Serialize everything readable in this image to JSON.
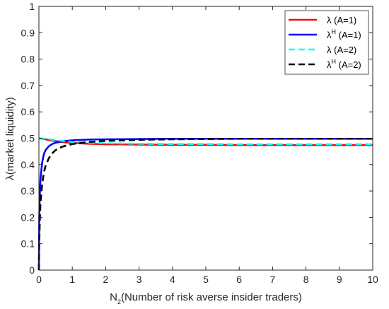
{
  "chart_data": {
    "type": "line",
    "xlabel": {
      "base": "N",
      "sub": "2",
      "rest": "(Number of risk averse insider traders)"
    },
    "ylabel": "λ(market liquidity)",
    "xlim": [
      0,
      10
    ],
    "ylim": [
      0,
      1
    ],
    "xticks": [
      "0",
      "1",
      "2",
      "3",
      "4",
      "5",
      "6",
      "7",
      "8",
      "9",
      "10"
    ],
    "yticks": [
      "0",
      "0.1",
      "0.2",
      "0.3",
      "0.4",
      "0.5",
      "0.6",
      "0.7",
      "0.8",
      "0.9",
      "1"
    ],
    "grid": false,
    "legend_position": "top-right",
    "series": [
      {
        "name": "λ (A=1)",
        "legend": {
          "sym": "λ",
          "sup": "",
          "rest": " (A=1)"
        },
        "color": "#ff0000",
        "dash": "solid",
        "x": [
          0,
          0.1,
          0.2,
          0.3,
          0.5,
          0.75,
          1,
          1.5,
          2,
          3,
          4,
          5,
          6,
          7,
          8,
          9,
          10
        ],
        "y": [
          0.5,
          0.498,
          0.496,
          0.493,
          0.489,
          0.485,
          0.482,
          0.479,
          0.477,
          0.476,
          0.475,
          0.475,
          0.474,
          0.474,
          0.474,
          0.474,
          0.474
        ]
      },
      {
        "name": "λH (A=1)",
        "legend": {
          "sym": "λ",
          "sup": "H",
          "rest": " (A=1)"
        },
        "color": "#0000ff",
        "dash": "solid",
        "x": [
          0,
          0.01,
          0.03,
          0.05,
          0.1,
          0.15,
          0.2,
          0.3,
          0.4,
          0.5,
          0.7,
          1,
          1.5,
          2,
          3,
          4,
          5,
          6,
          7,
          8,
          9,
          10
        ],
        "y": [
          0,
          0.2,
          0.3,
          0.35,
          0.41,
          0.44,
          0.455,
          0.47,
          0.478,
          0.483,
          0.488,
          0.492,
          0.495,
          0.496,
          0.497,
          0.498,
          0.498,
          0.498,
          0.498,
          0.498,
          0.498,
          0.498
        ]
      },
      {
        "name": "λ (A=2)",
        "legend": {
          "sym": "λ",
          "sup": "",
          "rest": " (A=2)"
        },
        "color": "#00ffff",
        "dash": "dashed",
        "x": [
          0,
          0.1,
          0.2,
          0.3,
          0.5,
          0.75,
          1,
          1.5,
          2,
          3,
          4,
          5,
          6,
          7,
          8,
          9,
          10
        ],
        "y": [
          0.5,
          0.499,
          0.498,
          0.496,
          0.493,
          0.489,
          0.486,
          0.483,
          0.481,
          0.479,
          0.478,
          0.478,
          0.477,
          0.477,
          0.477,
          0.477,
          0.477
        ]
      },
      {
        "name": "λH (A=2)",
        "legend": {
          "sym": "λ",
          "sup": "H",
          "rest": " (A=2)"
        },
        "color": "#000000",
        "dash": "dashed",
        "x": [
          0,
          0.01,
          0.03,
          0.05,
          0.1,
          0.15,
          0.2,
          0.3,
          0.4,
          0.5,
          0.7,
          1,
          1.5,
          2,
          3,
          4,
          5,
          6,
          7,
          8,
          9,
          10
        ],
        "y": [
          0,
          0.1,
          0.2,
          0.26,
          0.33,
          0.37,
          0.395,
          0.425,
          0.443,
          0.455,
          0.468,
          0.478,
          0.486,
          0.49,
          0.494,
          0.496,
          0.497,
          0.498,
          0.498,
          0.498,
          0.498,
          0.498
        ]
      }
    ]
  }
}
